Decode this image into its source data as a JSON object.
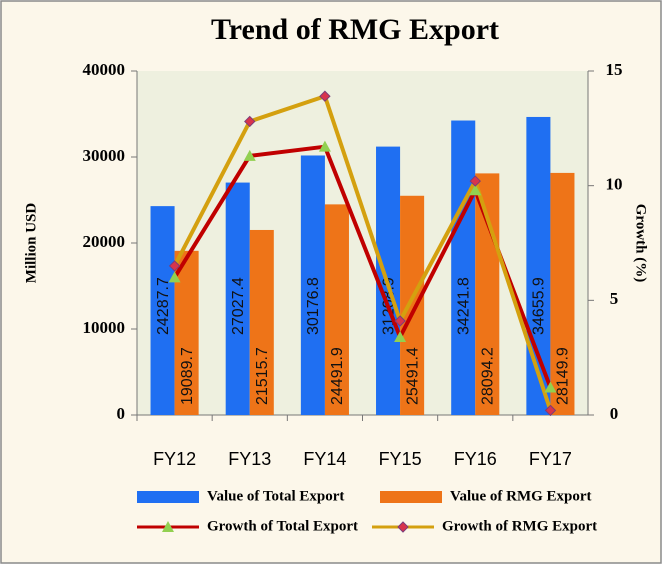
{
  "chart_data": {
    "type": "bar_line",
    "title": "Trend of RMG Export",
    "ylabel": "Million USD",
    "y2label": "Growth (%)",
    "categories": [
      "FY12",
      "FY13",
      "FY14",
      "FY15",
      "FY16",
      "FY17"
    ],
    "series": [
      {
        "name": "Value of Total Export",
        "color": "#1f6ff2",
        "type": "bar",
        "values": [
          24287.7,
          27027.4,
          30176.8,
          31208.9,
          34241.8,
          34655.9
        ]
      },
      {
        "name": "Value of RMG Export",
        "color": "#ee7418",
        "type": "bar",
        "values": [
          19089.7,
          21515.7,
          24491.9,
          25491.4,
          28094.2,
          28149.9
        ]
      },
      {
        "name": "Growth of Total Export",
        "color": "#c00000",
        "type": "line",
        "axis": "y2",
        "marker": "triangle",
        "marker_color": "#92d050",
        "values": [
          6.0,
          11.3,
          11.7,
          3.4,
          9.8,
          1.2
        ]
      },
      {
        "name": "Growth of RMG Export",
        "color": "#d4a00f",
        "type": "line",
        "axis": "y2",
        "marker": "diamond",
        "marker_color": "#d8344c",
        "values": [
          6.5,
          12.8,
          13.9,
          4.1,
          10.2,
          0.2
        ]
      }
    ],
    "ylim": [
      0,
      40000
    ],
    "yticks": [
      0,
      10000,
      20000,
      30000,
      40000
    ],
    "y2lim": [
      0,
      15
    ],
    "y2ticks": [
      0,
      5,
      10,
      15
    ]
  }
}
